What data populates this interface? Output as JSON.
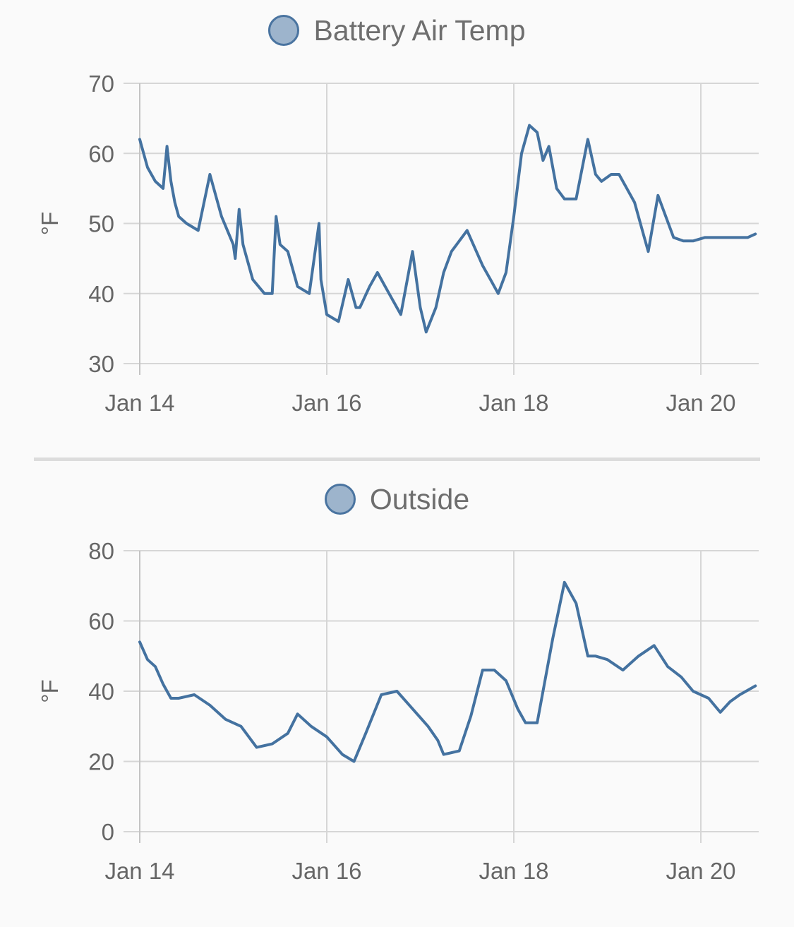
{
  "chart_data": [
    {
      "type": "line",
      "id": "battery",
      "legend": "Battery Air Temp",
      "ylabel": "°F",
      "ylim": [
        30,
        70
      ],
      "yticks": [
        30,
        40,
        50,
        60,
        70
      ],
      "xlim": [
        "2024-01-14T00:00",
        "2024-01-20T14:00"
      ],
      "xticks": [
        "2024-01-14",
        "2024-01-16",
        "2024-01-18",
        "2024-01-20"
      ],
      "xticklabels": [
        "Jan 14",
        "Jan 16",
        "Jan 18",
        "Jan 20"
      ],
      "grid": true,
      "series_color": "#4472a0",
      "series": [
        {
          "x": [
            "2024-01-14T00:00",
            "2024-01-14T02:00",
            "2024-01-14T04:00",
            "2024-01-14T06:00",
            "2024-01-14T07:00",
            "2024-01-14T08:00",
            "2024-01-14T09:00",
            "2024-01-14T10:00",
            "2024-01-14T12:00",
            "2024-01-14T15:00",
            "2024-01-14T18:00",
            "2024-01-14T21:00",
            "2024-01-15T00:00",
            "2024-01-15T00:30",
            "2024-01-15T01:30",
            "2024-01-15T02:30",
            "2024-01-15T05:00",
            "2024-01-15T08:00",
            "2024-01-15T10:00",
            "2024-01-15T11:00",
            "2024-01-15T12:00",
            "2024-01-15T14:00",
            "2024-01-15T16:30",
            "2024-01-15T19:30",
            "2024-01-15T22:00",
            "2024-01-15T22:30",
            "2024-01-16T00:00",
            "2024-01-16T03:00",
            "2024-01-16T05:30",
            "2024-01-16T07:30",
            "2024-01-16T08:30",
            "2024-01-16T11:00",
            "2024-01-16T13:00",
            "2024-01-16T16:00",
            "2024-01-16T19:00",
            "2024-01-16T22:00",
            "2024-01-17T00:00",
            "2024-01-17T01:30",
            "2024-01-17T04:00",
            "2024-01-17T06:00",
            "2024-01-17T08:00",
            "2024-01-17T12:00",
            "2024-01-17T16:00",
            "2024-01-17T18:00",
            "2024-01-17T20:00",
            "2024-01-17T22:00",
            "2024-01-18T00:00",
            "2024-01-18T02:00",
            "2024-01-18T04:00",
            "2024-01-18T06:00",
            "2024-01-18T07:30",
            "2024-01-18T09:00",
            "2024-01-18T11:00",
            "2024-01-18T13:00",
            "2024-01-18T16:00",
            "2024-01-18T19:00",
            "2024-01-18T21:00",
            "2024-01-18T22:30",
            "2024-01-19T01:00",
            "2024-01-19T03:00",
            "2024-01-19T07:00",
            "2024-01-19T09:30",
            "2024-01-19T10:30",
            "2024-01-19T13:00",
            "2024-01-19T17:00",
            "2024-01-19T19:30",
            "2024-01-19T22:00",
            "2024-01-20T01:00",
            "2024-01-20T04:00",
            "2024-01-20T06:00",
            "2024-01-20T07:00",
            "2024-01-20T08:30",
            "2024-01-20T10:00",
            "2024-01-20T12:00",
            "2024-01-20T14:00"
          ],
          "y": [
            62,
            58,
            56,
            55,
            61,
            56,
            53,
            51,
            50,
            49,
            57,
            51,
            47,
            45,
            52,
            47,
            42,
            40,
            40,
            51,
            47,
            46,
            41,
            40,
            50,
            42,
            37,
            36,
            42,
            38,
            38,
            41,
            43,
            40,
            37,
            46,
            38,
            34.5,
            38,
            43,
            46,
            49,
            44,
            42,
            40,
            43,
            51,
            60,
            64,
            63,
            59,
            61,
            55,
            53.5,
            53.5,
            62,
            57,
            56,
            57,
            57,
            53,
            48,
            46,
            54,
            48,
            47.5,
            47.5,
            48,
            48,
            48,
            48,
            48,
            48,
            48,
            48.5
          ]
        }
      ]
    },
    {
      "type": "line",
      "id": "outside",
      "legend": "Outside",
      "ylabel": "°F",
      "ylim": [
        0,
        80
      ],
      "yticks": [
        0,
        20,
        40,
        60,
        80
      ],
      "xlim": [
        "2024-01-14T00:00",
        "2024-01-20T14:00"
      ],
      "xticks": [
        "2024-01-14",
        "2024-01-16",
        "2024-01-18",
        "2024-01-20"
      ],
      "xticklabels": [
        "Jan 14",
        "Jan 16",
        "Jan 18",
        "Jan 20"
      ],
      "grid": true,
      "series_color": "#4472a0",
      "series": [
        {
          "x": [
            "2024-01-14T00:00",
            "2024-01-14T02:00",
            "2024-01-14T04:00",
            "2024-01-14T06:00",
            "2024-01-14T08:00",
            "2024-01-14T10:00",
            "2024-01-14T14:00",
            "2024-01-14T18:00",
            "2024-01-14T22:00",
            "2024-01-15T02:00",
            "2024-01-15T06:00",
            "2024-01-15T10:00",
            "2024-01-15T14:00",
            "2024-01-15T16:30",
            "2024-01-15T20:00",
            "2024-01-16T00:00",
            "2024-01-16T04:00",
            "2024-01-16T07:00",
            "2024-01-16T10:00",
            "2024-01-16T14:00",
            "2024-01-16T18:00",
            "2024-01-16T22:00",
            "2024-01-17T02:00",
            "2024-01-17T04:30",
            "2024-01-17T06:00",
            "2024-01-17T10:00",
            "2024-01-17T13:00",
            "2024-01-17T16:00",
            "2024-01-17T19:00",
            "2024-01-17T22:00",
            "2024-01-18T01:00",
            "2024-01-18T03:00",
            "2024-01-18T06:00",
            "2024-01-18T10:00",
            "2024-01-18T13:00",
            "2024-01-18T16:00",
            "2024-01-18T19:00",
            "2024-01-18T21:00",
            "2024-01-19T00:00",
            "2024-01-19T04:00",
            "2024-01-19T08:00",
            "2024-01-19T12:00",
            "2024-01-19T15:30",
            "2024-01-19T19:00",
            "2024-01-19T22:00",
            "2024-01-20T02:00",
            "2024-01-20T05:00",
            "2024-01-20T07:30",
            "2024-01-20T10:00",
            "2024-01-20T14:00"
          ],
          "y": [
            54,
            49,
            47,
            42,
            38,
            38,
            39,
            36,
            32,
            30,
            24,
            25,
            28,
            33.5,
            30,
            27,
            22,
            20,
            28,
            39,
            40,
            35,
            30,
            26,
            22,
            23,
            33,
            46,
            46,
            43,
            35,
            31,
            31,
            55,
            71,
            65,
            50,
            50,
            49,
            46,
            50,
            53,
            47,
            44,
            40,
            38,
            34,
            37,
            39,
            41.5
          ]
        }
      ]
    }
  ]
}
